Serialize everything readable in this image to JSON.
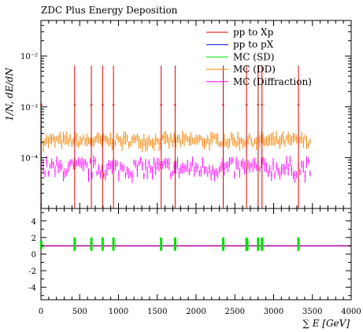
{
  "chart_data": {
    "type": "scatter",
    "title": "ZDC Plus Energy Deposition",
    "xlabel": "∑ E [GeV]",
    "ylabel": "1/N, dE/dN",
    "xlim": [
      0,
      4000
    ],
    "log_y": true,
    "ylim": [
      1e-05,
      0.05
    ],
    "y_tick_labels": [
      "10⁻⁴",
      "10⁻³",
      "10⁻²"
    ],
    "x_tick_labels": [
      "0",
      "500",
      "1000",
      "1500",
      "2000",
      "2500",
      "3000",
      "3500",
      "4000"
    ],
    "ratio_tick_labels": [
      "4",
      "2",
      "0",
      "-2",
      "-4"
    ],
    "ratio_ylim": [
      -5.5,
      5.5
    ],
    "legend_position": "top-right",
    "series": [
      {
        "name": "pp to Xp",
        "color": "#e00000",
        "marker": "vertical-line",
        "x": [
          5,
          435,
          650,
          795,
          935,
          1550,
          1730,
          2350,
          2650,
          2800,
          2850,
          3320
        ],
        "y": [
          0.0012,
          0.0065,
          0.0065,
          0.0065,
          0.0065,
          0.0065,
          0.0065,
          0.0065,
          0.0065,
          0.0065,
          0.0065,
          0.0065
        ]
      },
      {
        "name": "pp to pX",
        "color": "#0000e0",
        "marker": "none",
        "x": [],
        "y": []
      },
      {
        "name": "MC (SD)",
        "color": "#00e000",
        "marker": "none",
        "x": [],
        "y": []
      },
      {
        "name": "MC (DD)",
        "color": "#f08000",
        "marker": "error-bar",
        "x_range": [
          30,
          3470
        ],
        "n_points": 160,
        "typical_y": 0.00021,
        "y_spread": [
          0.00015,
          0.00032
        ]
      },
      {
        "name": "MC (Diffraction)",
        "color": "#ff00ff",
        "marker": "error-bar",
        "x_range": [
          30,
          3470
        ],
        "n_points": 160,
        "typical_y": 8e-05,
        "y_spread": [
          3e-05,
          0.00013
        ]
      }
    ],
    "ratio": {
      "reference_line": 1,
      "reference_color": "#b000b0",
      "bands": {
        "color": "#00e000",
        "x": [
          5,
          435,
          650,
          795,
          935,
          1550,
          1730,
          2350,
          2650,
          2660,
          2800,
          2850,
          3320
        ],
        "low": [
          0.6,
          0.4,
          0.4,
          0.4,
          0.4,
          0.4,
          0.4,
          0.4,
          0.4,
          0.4,
          0.4,
          0.4,
          0.4
        ],
        "high": [
          1.6,
          2.0,
          2.0,
          2.0,
          2.0,
          2.0,
          2.0,
          2.0,
          2.0,
          1.8,
          2.0,
          2.0,
          2.0
        ]
      }
    }
  }
}
